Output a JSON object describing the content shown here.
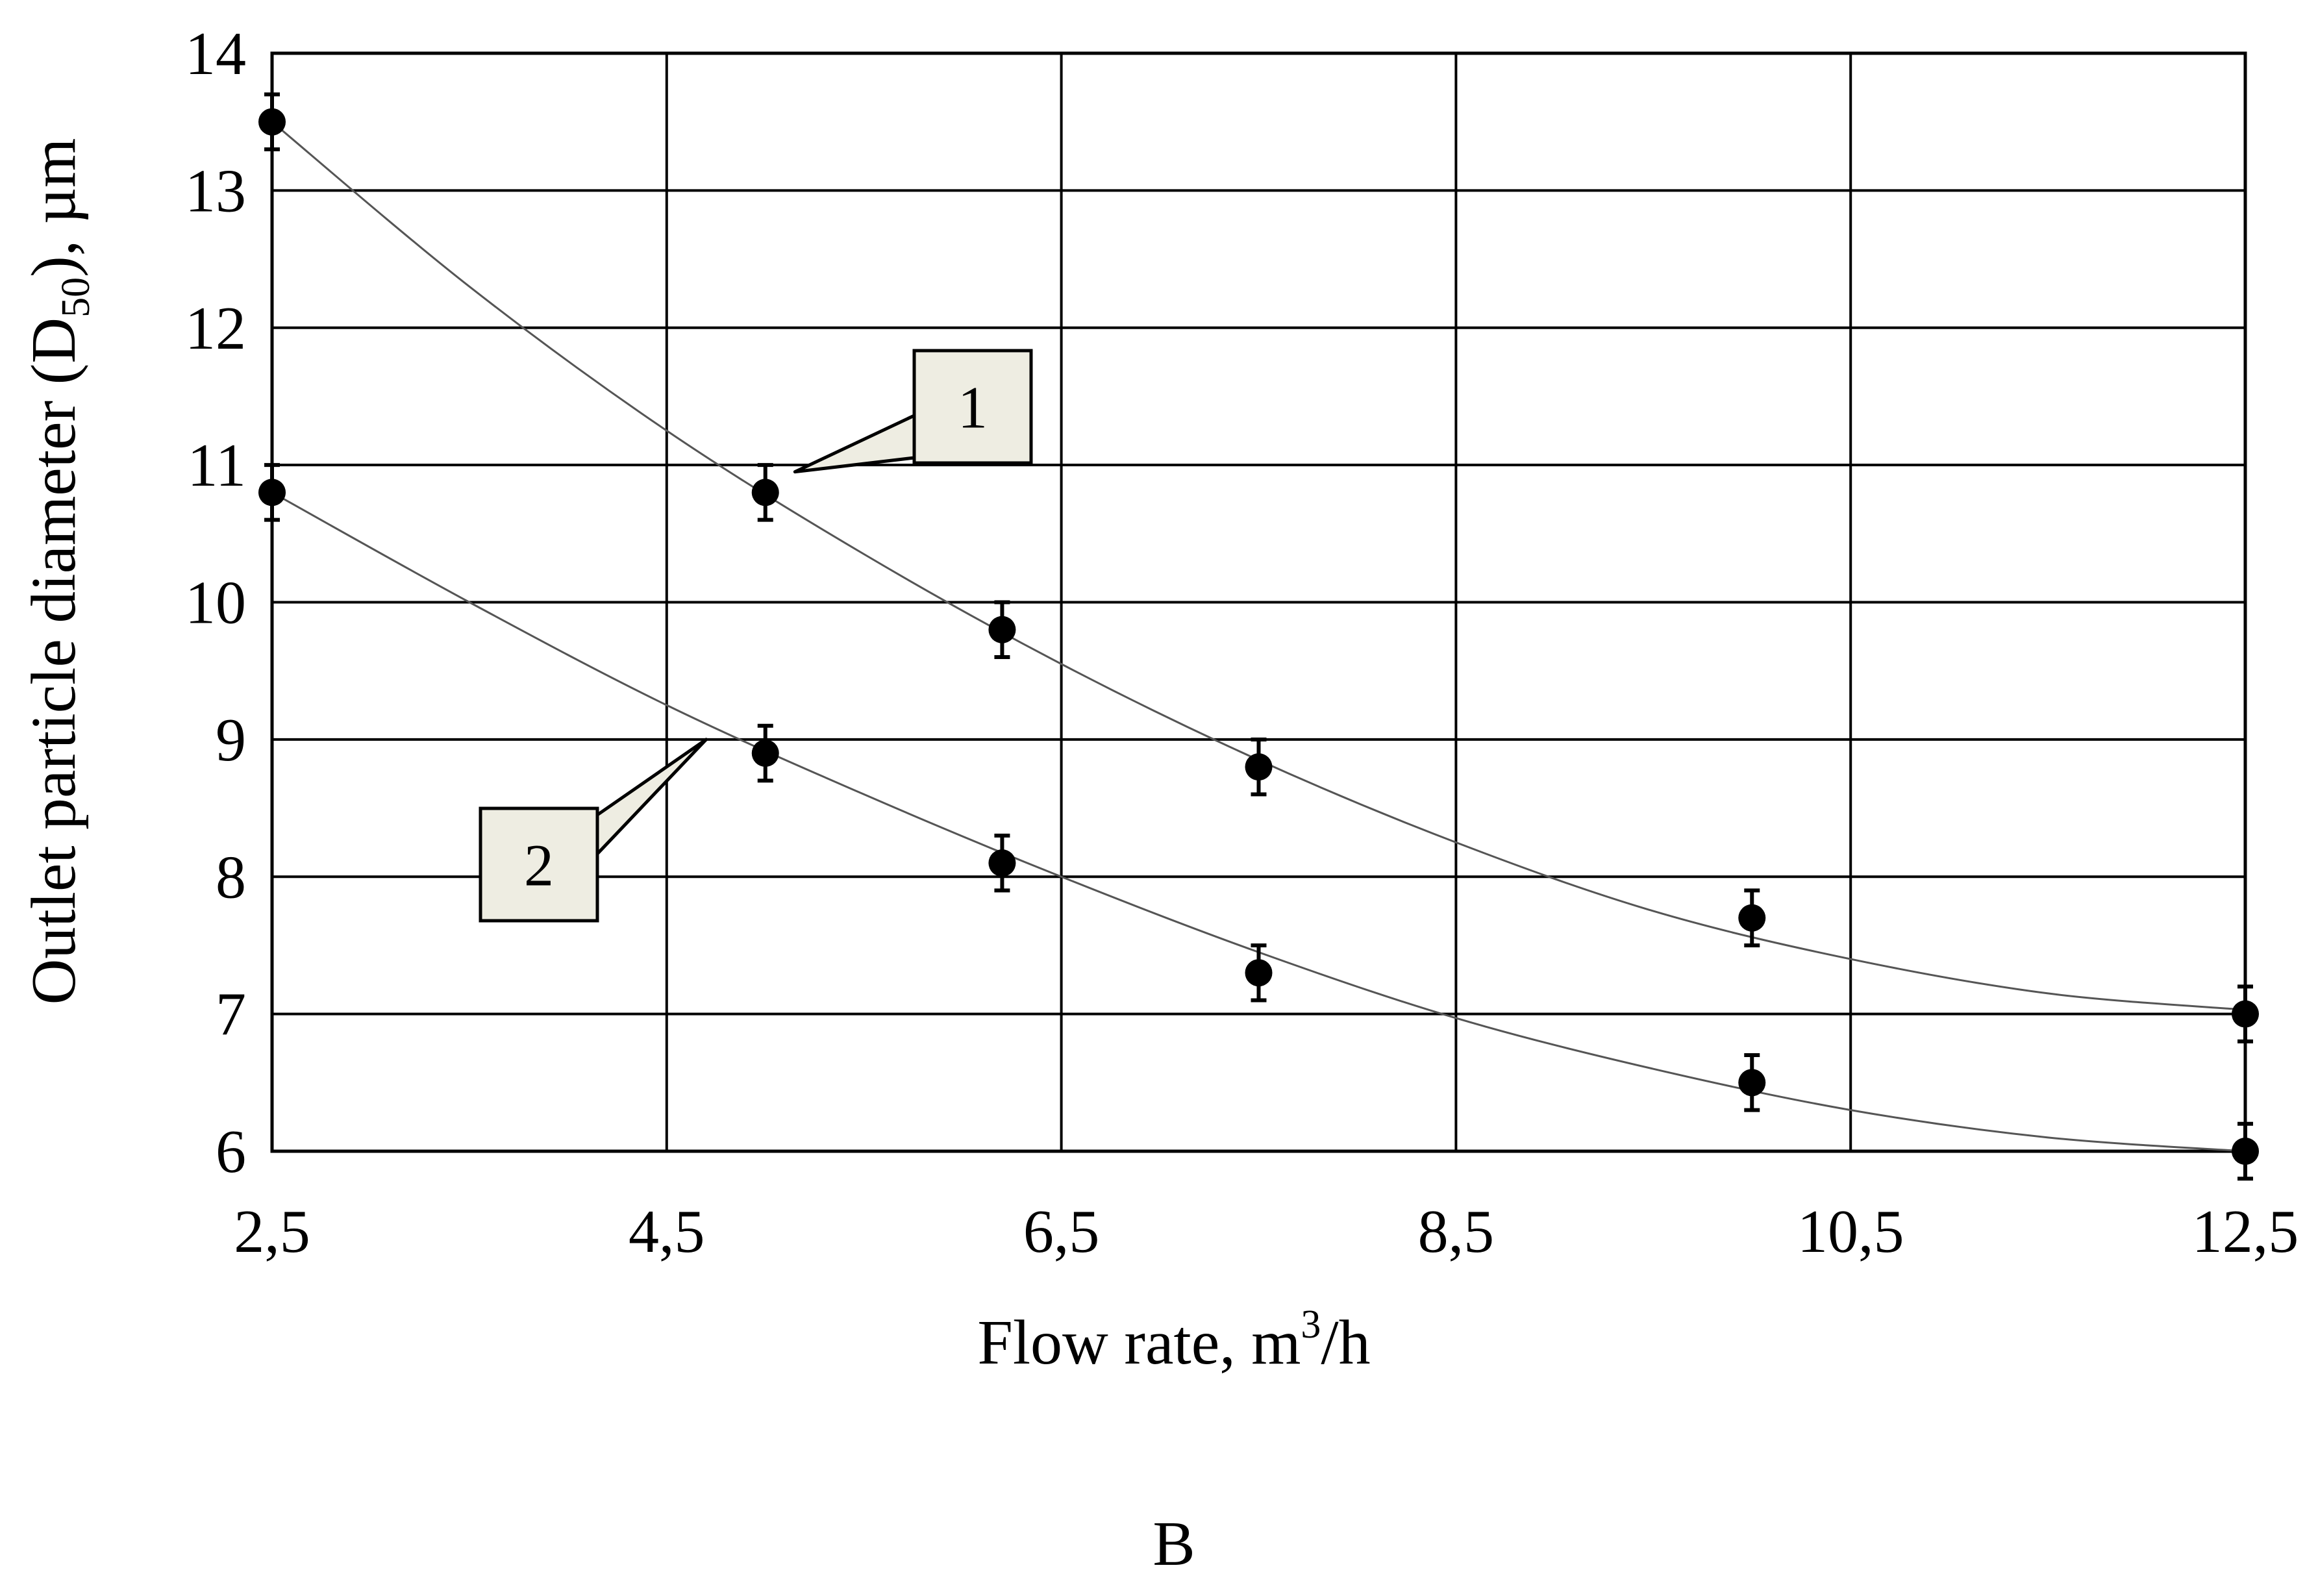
{
  "chart_data": {
    "type": "scatter",
    "xlabel": {
      "main": "Flow rate, m",
      "sup": "3",
      "tail": "/h"
    },
    "ylabel": {
      "main": "Outlet particle diameter (D",
      "sub": "50",
      "tail": "), µm"
    },
    "xlim": [
      2.5,
      12.5
    ],
    "ylim": [
      6,
      14
    ],
    "x_ticks": [
      2.5,
      4.5,
      6.5,
      8.5,
      10.5,
      12.5
    ],
    "x_tick_labels": [
      "2,5",
      "4,5",
      "6,5",
      "8,5",
      "10,5",
      "12,5"
    ],
    "y_ticks": [
      6,
      7,
      8,
      9,
      10,
      11,
      12,
      13,
      14
    ],
    "y_tick_labels": [
      "6",
      "7",
      "8",
      "9",
      "10",
      "11",
      "12",
      "13",
      "14"
    ],
    "grid": true,
    "panel_label": "B",
    "series": [
      {
        "callout": "1",
        "x": [
          2.5,
          5.0,
          6.2,
          7.5,
          10.0,
          12.5
        ],
        "y": [
          13.5,
          10.8,
          9.8,
          8.8,
          7.7,
          7.0
        ],
        "error": [
          0.2,
          0.2,
          0.2,
          0.2,
          0.2,
          0.2
        ],
        "trend": [
          [
            2.5,
            13.5
          ],
          [
            3.5,
            12.3
          ],
          [
            4.5,
            11.25
          ],
          [
            5.5,
            10.35
          ],
          [
            6.5,
            9.55
          ],
          [
            7.5,
            8.85
          ],
          [
            8.5,
            8.25
          ],
          [
            9.5,
            7.75
          ],
          [
            10.5,
            7.4
          ],
          [
            11.5,
            7.15
          ],
          [
            12.5,
            7.03
          ]
        ],
        "color": "#000000"
      },
      {
        "callout": "2",
        "x": [
          2.5,
          5.0,
          6.2,
          7.5,
          10.0,
          12.5
        ],
        "y": [
          10.8,
          8.9,
          8.1,
          7.3,
          6.5,
          6.0
        ],
        "error": [
          0.2,
          0.2,
          0.2,
          0.2,
          0.2,
          0.2
        ],
        "trend": [
          [
            2.5,
            10.8
          ],
          [
            3.5,
            10.0
          ],
          [
            4.5,
            9.25
          ],
          [
            5.5,
            8.6
          ],
          [
            6.5,
            8.0
          ],
          [
            7.5,
            7.45
          ],
          [
            8.5,
            6.97
          ],
          [
            9.5,
            6.6
          ],
          [
            10.5,
            6.3
          ],
          [
            11.5,
            6.1
          ],
          [
            12.5,
            6.0
          ]
        ],
        "color": "#000000"
      }
    ],
    "callouts": [
      {
        "text": "1",
        "anchor": [
          5.15,
          10.95
        ]
      },
      {
        "text": "2",
        "anchor": [
          4.7,
          9.0
        ]
      }
    ],
    "colors": {
      "marker": "#000000",
      "grid": "#000000",
      "trend": "#555555",
      "callout_fill": "#eeede2",
      "callout_border": "#000000"
    }
  }
}
